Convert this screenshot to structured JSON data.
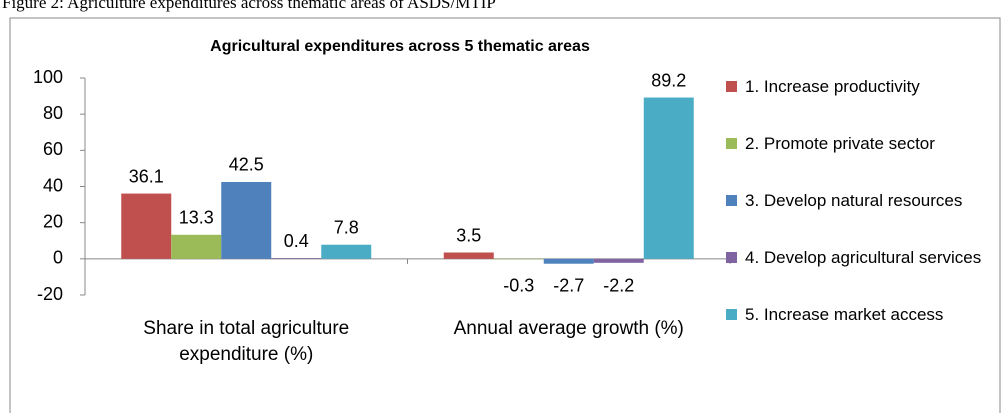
{
  "caption": "Figure 2: Agriculture expenditures across thematic areas of ASDS/MTIP",
  "chart_data": {
    "type": "bar",
    "title": "Agricultural expenditures across 5 thematic areas",
    "categories": [
      "Share in total agriculture expenditure (%)",
      "Annual average growth (%)"
    ],
    "series": [
      {
        "name": "1. Increase productivity",
        "color": "#c0504d",
        "values": [
          36.1,
          3.5
        ]
      },
      {
        "name": "2. Promote private sector",
        "color": "#9bbb59",
        "values": [
          13.3,
          -0.3
        ]
      },
      {
        "name": "3. Develop natural resources",
        "color": "#4f81bd",
        "values": [
          42.5,
          -2.7
        ]
      },
      {
        "name": "4. Develop agricultural services",
        "color": "#8064a2",
        "values": [
          0.4,
          -2.2
        ]
      },
      {
        "name": "5. Increase market access",
        "color": "#4bacc6",
        "values": [
          7.8,
          89.2
        ]
      }
    ],
    "ylim": [
      -20,
      100
    ],
    "yticks": [
      -20,
      0,
      20,
      40,
      60,
      80,
      100
    ],
    "legend": "right"
  }
}
